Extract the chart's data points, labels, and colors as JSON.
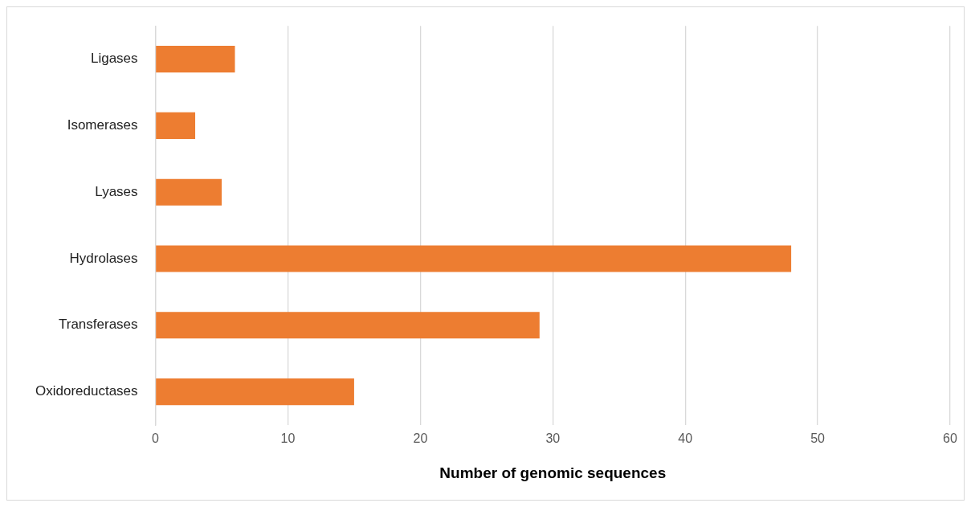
{
  "chart_data": {
    "type": "bar",
    "orientation": "horizontal",
    "categories": [
      "Ligases",
      "Isomerases",
      "Lyases",
      "Hydrolases",
      "Transferases",
      "Oxidoreductases"
    ],
    "values": [
      6,
      3,
      5,
      48,
      29,
      15
    ],
    "color": "#ed7d31",
    "xlabel": "Number of genomic sequences",
    "xlim": [
      0,
      60
    ],
    "xticks": [
      0,
      10,
      20,
      30,
      40,
      50,
      60
    ],
    "grid": "x",
    "legend": false
  }
}
